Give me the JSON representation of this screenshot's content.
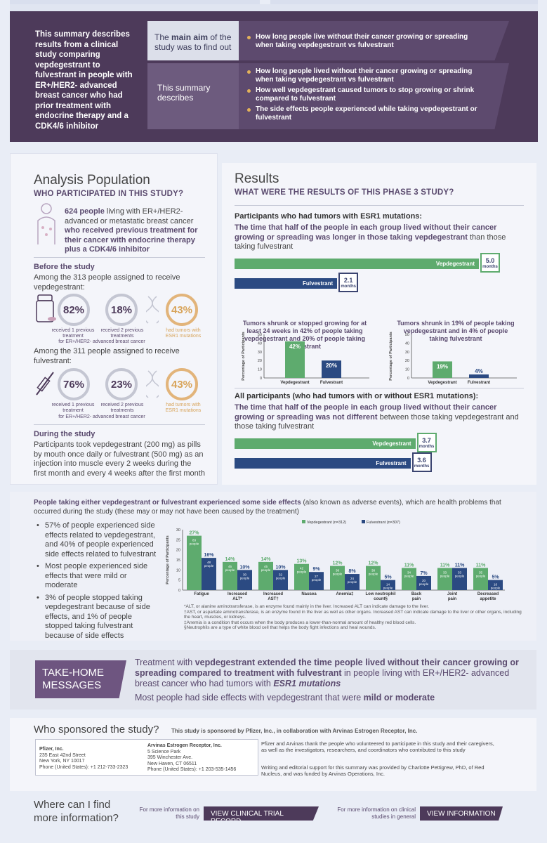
{
  "summary": {
    "intro": "This summary describes results from a clinical study comparing vepdegestrant to fulvestrant in people with ER+/HER2- advanced breast cancer who had prior treatment with endocrine therapy and a CDK4/6 inhibitor",
    "aim_pre": "The ",
    "aim_bold": "main aim",
    "aim_post": " of the study was to find out",
    "aim_item": "How long people live without their cancer growing or spreading when taking vepdegestrant vs fulvestrant",
    "describes_label": "This summary describes",
    "describes_items": [
      "How long people lived without their cancer growing or spreading when taking vepdegestrant vs fulvestrant",
      "How well vepdegestrant caused tumors to stop growing or shrink compared to fulvestrant",
      "The side effects people experienced while taking vepdegestrant or fulvestrant"
    ]
  },
  "population": {
    "title": "Analysis Population",
    "subtitle": "WHO PARTICIPATED IN THIS STUDY?",
    "lead_bold": "624 people",
    "lead_mid": " living with ER+/HER2- advanced or metastatic breast cancer ",
    "lead_bold2": "who received previous treatment for their cancer with endocrine therapy plus a CDK4/6 inhibitor",
    "before_title": "Before the study",
    "veps_line": "Among the 313 people assigned to receive vepdegestrant:",
    "veps": [
      {
        "value": "82%",
        "label": "received 1 previous treatment"
      },
      {
        "value": "18%",
        "label": "received 2 previous treatments"
      },
      {
        "value": "43%",
        "label": "had tumors with ESR1 mutations"
      }
    ],
    "veps_note": "for ER+/HER2- advanced breast cancer",
    "fulv_line": "Among the 311 people assigned to receive fulvestrant:",
    "fulv": [
      {
        "value": "76%",
        "label": "received 1 previous treatment"
      },
      {
        "value": "23%",
        "label": "received 2 previous treatments"
      },
      {
        "value": "43%",
        "label": "had tumors with ESR1 mutations"
      }
    ],
    "fulv_note": "for ER+/HER2- advanced breast cancer",
    "during_title": "During the study",
    "during_text": "Participants took vepdegestrant (200 mg) as pills by mouth once daily or fulvestrant (500 mg) as an injection into muscle every 2 weeks during the first month and every 4 weeks after the first month"
  },
  "results": {
    "title": "Results",
    "subtitle": "WHAT WERE THE RESULTS OF THIS PHASE 3 STUDY?",
    "esr1_title": "Participants who had tumors with ESR1 mutations:",
    "esr1_text_pre": "The time that half of the people in each group lived without their cancer growing or spreading was longer in those taking vepdegestrant",
    "esr1_text_post": " than those taking fulvestrant",
    "esr1_bars": [
      {
        "name": "Vepdegestrant",
        "value": "5.0",
        "unit": "months",
        "months": 5.0
      },
      {
        "name": "Fulvestrant",
        "value": "2.1",
        "unit": "months",
        "months": 2.1
      }
    ],
    "chart1_caption": "Tumors shrunk or stopped growing for at least 24 weeks in 42% of people taking vepdegestrant and 20% of people taking fulvestrant",
    "chart2_caption": "Tumors shrunk in 19% of people taking vepdegestrant and in 4% of people taking fulvestrant",
    "all_title": "All participants (who had tumors with or without ESR1 mutations):",
    "all_text_pre": "The time that half of the people in each group lived without their cancer growing or spreading was not different",
    "all_text_post": " between those taking vepdegestrant and those taking fulvestrant",
    "all_bars": [
      {
        "name": "Vepdegestrant",
        "value": "3.7",
        "unit": "months",
        "months": 3.7
      },
      {
        "name": "Fulvestrant",
        "value": "3.6",
        "unit": "months",
        "months": 3.6
      }
    ]
  },
  "chart_data": [
    {
      "type": "bar",
      "ylabel": "Percentage of Participants",
      "ylim": [
        0,
        50
      ],
      "yticks": [
        "0",
        "10",
        "20",
        "30",
        "40",
        "50"
      ],
      "categories": [
        "Vepdegestrant",
        "Fulvestrant"
      ],
      "values": [
        42,
        20
      ],
      "labels": [
        "42%",
        "20%"
      ]
    },
    {
      "type": "bar",
      "ylabel": "Percentage of Participants",
      "ylim": [
        0,
        50
      ],
      "yticks": [
        "0",
        "10",
        "20",
        "30",
        "40",
        "50"
      ],
      "categories": [
        "Vepdegestrant",
        "Fulvestrant"
      ],
      "values": [
        19,
        4
      ],
      "labels": [
        "19%",
        "4%"
      ]
    },
    {
      "type": "bar",
      "ylabel": "Percentage of Participants",
      "ylim": [
        0,
        30
      ],
      "yticks": [
        "0",
        "5",
        "10",
        "15",
        "20",
        "25",
        "30"
      ],
      "legend": [
        "Vepdegestrant (n=312)",
        "Fulvestrant (n=307)"
      ],
      "categories": [
        "Fatigue",
        "Increased ALT*",
        "Increased AST†",
        "Nausea",
        "Anemia‡",
        "Low neutrophil count§",
        "Back pain",
        "Joint pain",
        "Decreased appetite"
      ],
      "series": [
        {
          "name": "Vepdegestrant",
          "values": [
            27,
            14,
            14,
            13,
            12,
            12,
            11,
            11,
            11
          ],
          "labels": [
            "27%",
            "14%",
            "14%",
            "13%",
            "12%",
            "12%",
            "11%",
            "11%",
            "11%"
          ],
          "people": [
            "83",
            "45",
            "45",
            "42",
            "38",
            "38",
            "34",
            "33",
            "35"
          ]
        },
        {
          "name": "Fulvestrant",
          "values": [
            16,
            10,
            10,
            9,
            8,
            5,
            7,
            11,
            5
          ],
          "labels": [
            "16%",
            "10%",
            "10%",
            "9%",
            "8%",
            "5%",
            "7%",
            "11%",
            "5%"
          ],
          "people": [
            "48",
            "30",
            "32",
            "27",
            "24",
            "14",
            "20",
            "33",
            "16"
          ]
        }
      ]
    }
  ],
  "side_effects": {
    "title_bold": "People taking either vepdegestrant or fulvestrant experienced some side effects",
    "title_rest": " (also known as adverse events), which are health problems that occurred during the study (these may or may not have been caused by the treatment)",
    "bullets": [
      "57% of people experienced side effects related to vepdegestrant, and 40% of people experienced side effects related to fulvestrant",
      "Most people experienced side effects that were mild or moderate",
      "3% of people stopped taking vepdegestrant because of side effects, and 1% of people stopped taking fulvestrant because of side effects"
    ],
    "people_word": "people",
    "footnotes": [
      "*ALT, or alanine aminotransferase, is an enzyme found mainly in the liver. Increased ALT can indicate damage to the liver.",
      "†AST, or aspartate aminotransferase, is an enzyme found in the liver as well as other organs. Increased AST can indicate damage to the liver or other organs, including the heart, muscles, or kidneys.",
      "‡Anemia is a condition that occurs when the body produces a lower-than-normal amount of healthy red blood cells.",
      "§Neutrophils are a type of white blood cell that helps the body fight infections and heal wounds."
    ]
  },
  "takehome": {
    "label": "TAKE-HOME MESSAGES",
    "m1_pre": "Treatment with ",
    "m1_bold": "vepdegestrant extended the time people lived without their cancer growing or spreading compared to treatment with fulvestrant",
    "m1_mid": " in people living with ER+/HER2- advanced breast cancer who had tumors with ",
    "m1_bold2": "ESR1 mutations",
    "m2_pre": "Most people had side effects with vepdegestrant that were ",
    "m2_bold": "mild or moderate"
  },
  "sponsor": {
    "title": "Who sponsored the study?",
    "sub": "This study is sponsored by Pfizer, Inc., in collaboration with Arvinas Estrogen Receptor, Inc.",
    "pfizer": [
      "Pfizer, Inc.",
      "235 East 42nd Street",
      "New York, NY 10017",
      "Phone (United States): +1 212-733-2323"
    ],
    "arvinas": [
      "Arvinas Estrogen Receptor, Inc.",
      "5 Science Park",
      "395 Winchester Ave.",
      "New Haven, CT 06511",
      "Phone (United States): +1 203-535-1456"
    ],
    "thanks": "Pfizer and Arvinas thank the people who volunteered to participate in this study and their caregivers, as well as the investigators, researchers, and coordinators who contributed to this study",
    "writing": "Writing and editorial support for this summary was provided by Charlotte Pettigrew, PhD, of Red Nucleus, and was funded by Arvinas Operations, Inc."
  },
  "more": {
    "title": "Where can I find more information?",
    "study_label": "For more information on this study",
    "study_btn": "VIEW CLINICAL TRIAL RECORD",
    "general_label": "For more information on clinical studies in general",
    "general_btn": "VIEW INFORMATION"
  },
  "colors": {
    "vep": "#5eab6e",
    "fulv": "#2b4a82",
    "plum": "#4d3a5a",
    "gold": "#e2b47a"
  }
}
